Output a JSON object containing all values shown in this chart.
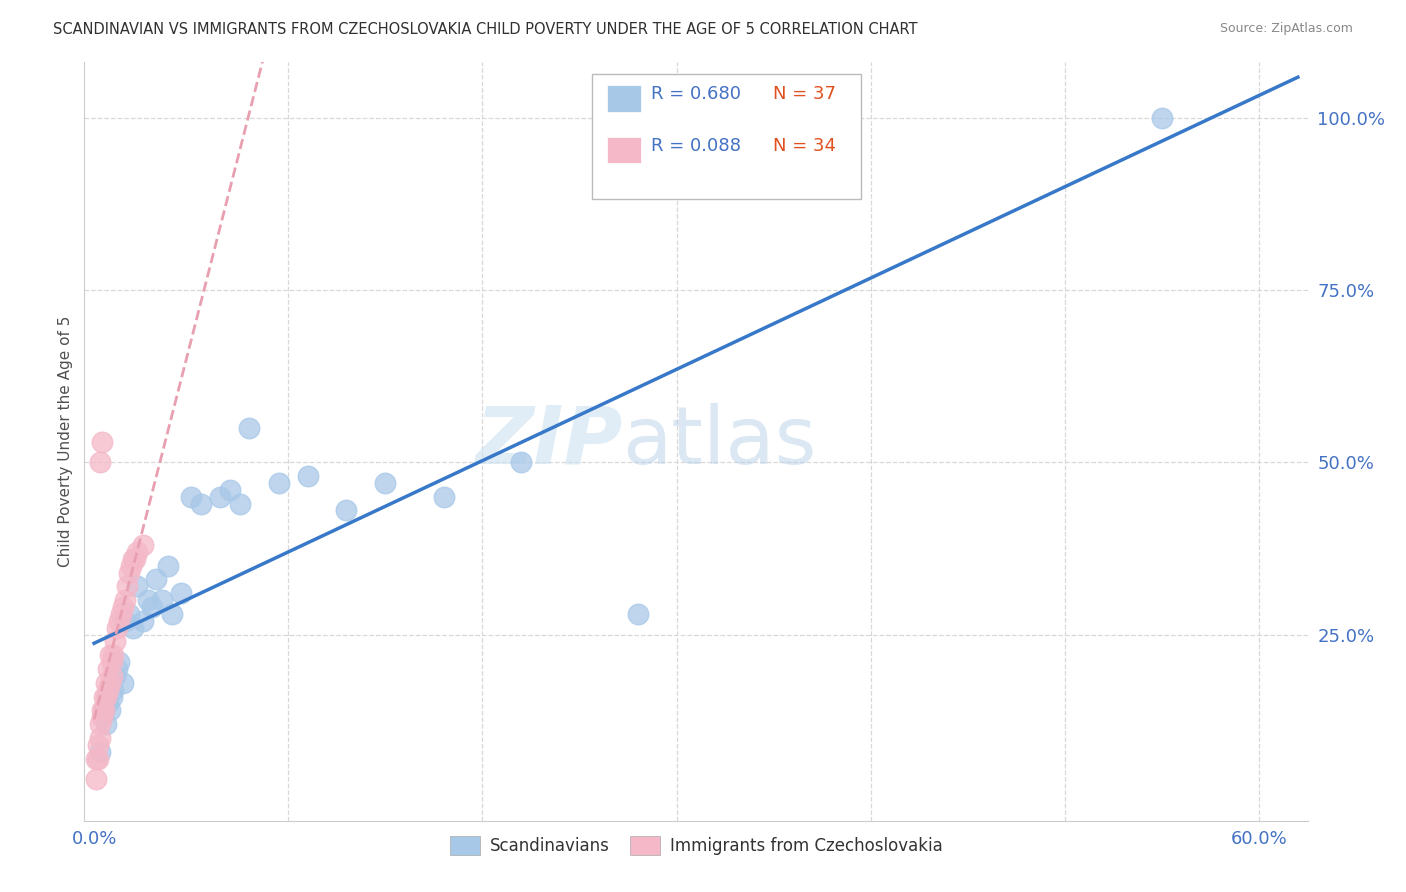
{
  "title": "SCANDINAVIAN VS IMMIGRANTS FROM CZECHOSLOVAKIA CHILD POVERTY UNDER THE AGE OF 5 CORRELATION CHART",
  "source": "Source: ZipAtlas.com",
  "ylabel": "Child Poverty Under the Age of 5",
  "x_tick_positions": [
    0.0,
    0.1,
    0.2,
    0.3,
    0.4,
    0.5,
    0.6
  ],
  "x_tick_labels": [
    "0.0%",
    "",
    "",
    "",
    "",
    "",
    "60.0%"
  ],
  "y_tick_positions": [
    0.0,
    0.25,
    0.5,
    0.75,
    1.0
  ],
  "y_tick_labels_right": [
    "",
    "25.0%",
    "50.0%",
    "75.0%",
    "100.0%"
  ],
  "legend_blue_r": "R = 0.680",
  "legend_blue_n": "N = 37",
  "legend_pink_r": "R = 0.088",
  "legend_pink_n": "N = 34",
  "legend_label_blue": "Scandinavians",
  "legend_label_pink": "Immigrants from Czechoslovakia",
  "watermark_zip": "ZIP",
  "watermark_atlas": "atlas",
  "blue_color": "#a8c8e8",
  "pink_color": "#f4b8c8",
  "blue_line_color": "#3878c8",
  "pink_line_color": "#e8a0b0",
  "r_value_color": "#4472c4",
  "n_value_color": "#e05020",
  "axis_label_color": "#4472c4",
  "grid_color": "#d8d8d8",
  "title_color": "#303030",
  "ylabel_color": "#505050",
  "source_color": "#888888",
  "scandinavian_x": [
    0.003,
    0.005,
    0.006,
    0.007,
    0.008,
    0.009,
    0.01,
    0.011,
    0.012,
    0.013,
    0.015,
    0.016,
    0.018,
    0.02,
    0.022,
    0.025,
    0.028,
    0.03,
    0.032,
    0.035,
    0.038,
    0.04,
    0.045,
    0.05,
    0.055,
    0.065,
    0.07,
    0.075,
    0.08,
    0.095,
    0.11,
    0.13,
    0.15,
    0.18,
    0.22,
    0.28,
    0.55
  ],
  "scandinavian_y": [
    0.08,
    0.14,
    0.12,
    0.15,
    0.14,
    0.16,
    0.17,
    0.19,
    0.2,
    0.21,
    0.18,
    0.27,
    0.28,
    0.26,
    0.32,
    0.27,
    0.3,
    0.29,
    0.33,
    0.3,
    0.35,
    0.28,
    0.31,
    0.45,
    0.44,
    0.45,
    0.46,
    0.44,
    0.55,
    0.47,
    0.48,
    0.43,
    0.47,
    0.45,
    0.5,
    0.28,
    1.0
  ],
  "czechoslovakia_x": [
    0.001,
    0.001,
    0.002,
    0.002,
    0.003,
    0.003,
    0.004,
    0.004,
    0.005,
    0.005,
    0.006,
    0.006,
    0.007,
    0.007,
    0.008,
    0.008,
    0.009,
    0.009,
    0.01,
    0.011,
    0.012,
    0.013,
    0.014,
    0.015,
    0.016,
    0.017,
    0.018,
    0.019,
    0.02,
    0.021,
    0.022,
    0.025,
    0.003,
    0.004
  ],
  "czechoslovakia_y": [
    0.04,
    0.07,
    0.07,
    0.09,
    0.1,
    0.12,
    0.13,
    0.14,
    0.14,
    0.16,
    0.16,
    0.18,
    0.17,
    0.2,
    0.18,
    0.22,
    0.19,
    0.21,
    0.22,
    0.24,
    0.26,
    0.27,
    0.28,
    0.29,
    0.3,
    0.32,
    0.34,
    0.35,
    0.36,
    0.36,
    0.37,
    0.38,
    0.5,
    0.53
  ],
  "xlim": [
    -0.005,
    0.625
  ],
  "ylim": [
    -0.02,
    1.08
  ]
}
